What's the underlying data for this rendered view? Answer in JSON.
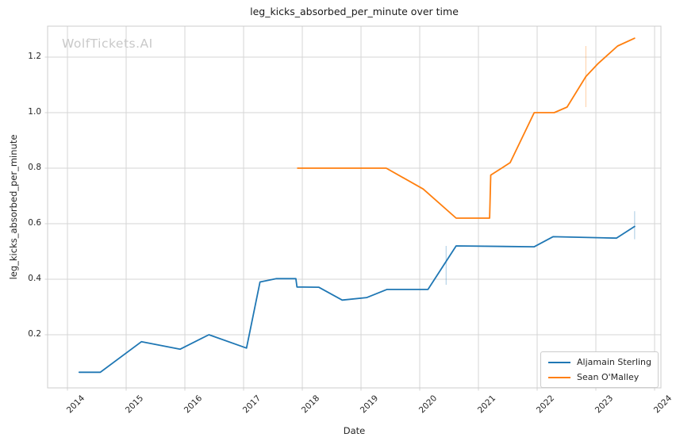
{
  "page": {
    "watermark": "WolfTickets.AI"
  },
  "colors": {
    "grid": "#d5d5d5",
    "spine": "#cccccc",
    "text": "#262626",
    "title": "#1a1a1a",
    "watermark": "#c9c9c9",
    "series_blue": "#1f77b4",
    "series_orange": "#ff7f0e"
  },
  "chart_data": {
    "type": "line",
    "title": "leg_kicks_absorbed_per_minute over time",
    "xlabel": "Date",
    "ylabel": "leg_kicks_absorbed_per_minute",
    "grid": true,
    "legend_position": "lower right",
    "x_ticks": [
      2014,
      2015,
      2016,
      2017,
      2018,
      2019,
      2020,
      2021,
      2022,
      2023,
      2024
    ],
    "y_ticks": [
      0.2,
      0.4,
      0.6,
      0.8,
      1.0,
      1.2
    ],
    "xlim": [
      2013.66,
      2024.11
    ],
    "ylim": [
      0.01,
      1.31
    ],
    "series": [
      {
        "name": "Aljamain Sterling",
        "color": "#1f77b4",
        "points": [
          [
            2014.2,
            0.065
          ],
          [
            2014.56,
            0.065
          ],
          [
            2015.26,
            0.175
          ],
          [
            2015.92,
            0.148
          ],
          [
            2016.41,
            0.2
          ],
          [
            2017.05,
            0.152
          ],
          [
            2017.28,
            0.39
          ],
          [
            2017.56,
            0.402
          ],
          [
            2017.89,
            0.402
          ],
          [
            2017.91,
            0.372
          ],
          [
            2018.28,
            0.371
          ],
          [
            2018.68,
            0.325
          ],
          [
            2019.1,
            0.334
          ],
          [
            2019.44,
            0.363
          ],
          [
            2020.14,
            0.363
          ],
          [
            2020.62,
            0.52
          ],
          [
            2021.95,
            0.517
          ],
          [
            2022.27,
            0.553
          ],
          [
            2023.35,
            0.548
          ],
          [
            2023.66,
            0.59
          ]
        ]
      },
      {
        "name": "Sean O'Malley",
        "color": "#ff7f0e",
        "points": [
          [
            2017.92,
            0.8
          ],
          [
            2019.43,
            0.8
          ],
          [
            2020.06,
            0.725
          ],
          [
            2020.62,
            0.62
          ],
          [
            2021.19,
            0.62
          ],
          [
            2021.21,
            0.775
          ],
          [
            2021.54,
            0.82
          ],
          [
            2021.95,
            1.0
          ],
          [
            2022.29,
            1.0
          ],
          [
            2022.51,
            1.02
          ],
          [
            2022.83,
            1.13
          ],
          [
            2023.03,
            1.175
          ],
          [
            2023.37,
            1.24
          ],
          [
            2023.66,
            1.268
          ]
        ]
      }
    ],
    "error_bars": [
      {
        "series": "Aljamain Sterling",
        "x": 2020.45,
        "y_low": 0.38,
        "y_high": 0.52
      },
      {
        "series": "Aljamain Sterling",
        "x": 2023.66,
        "y_low": 0.544,
        "y_high": 0.645
      },
      {
        "series": "Sean O'Malley",
        "x": 2022.83,
        "y_low": 1.02,
        "y_high": 1.24
      }
    ]
  }
}
